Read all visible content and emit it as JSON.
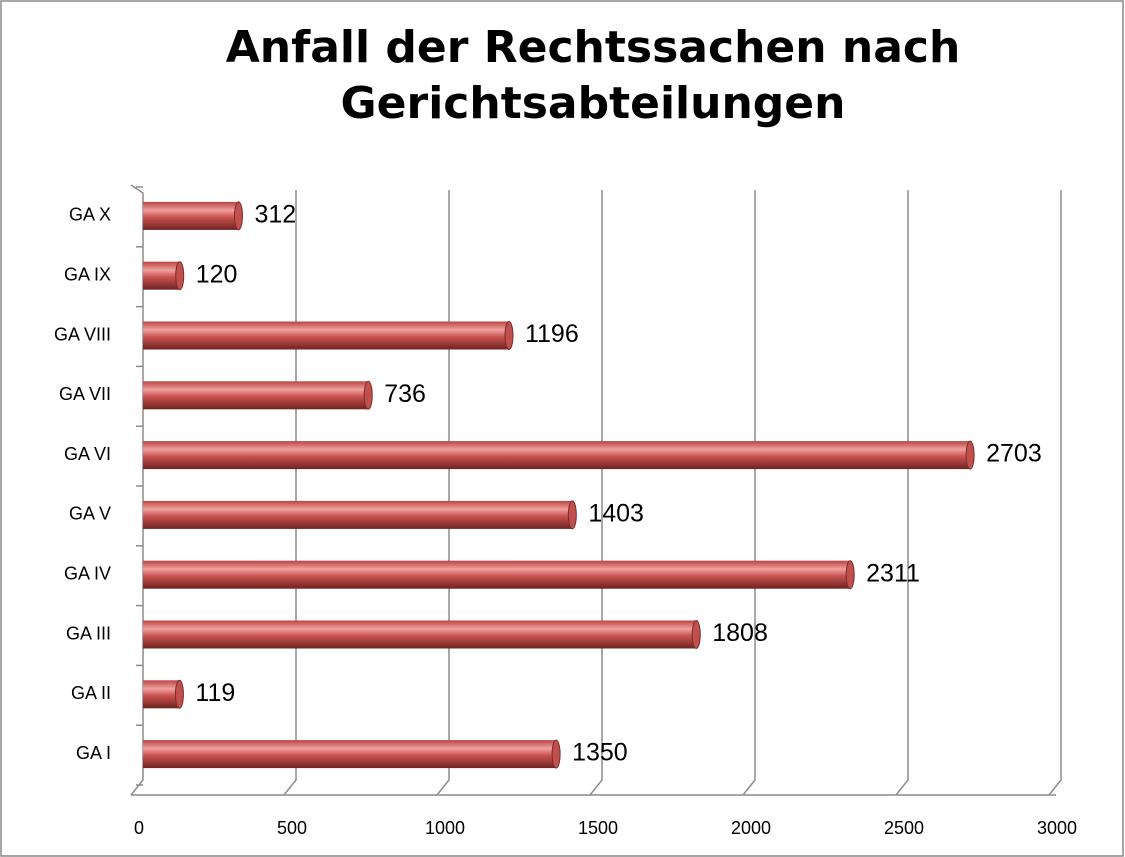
{
  "chart_data": {
    "type": "bar",
    "orientation": "horizontal",
    "title": [
      "Anfall der Rechtssachen nach",
      "Gerichtsabteilungen"
    ],
    "categories": [
      "GA I",
      "GA II",
      "GA III",
      "GA IV",
      "GA V",
      "GA VI",
      "GA VII",
      "GA VIII",
      "GA IX",
      "GA X"
    ],
    "values": [
      1350,
      119,
      1808,
      2311,
      1403,
      2703,
      736,
      1196,
      120,
      312
    ],
    "color": "#c0504d",
    "xlim": [
      0,
      3000
    ],
    "xticks": [
      0,
      500,
      1000,
      1500,
      2000,
      2500,
      3000
    ],
    "grid": true
  }
}
